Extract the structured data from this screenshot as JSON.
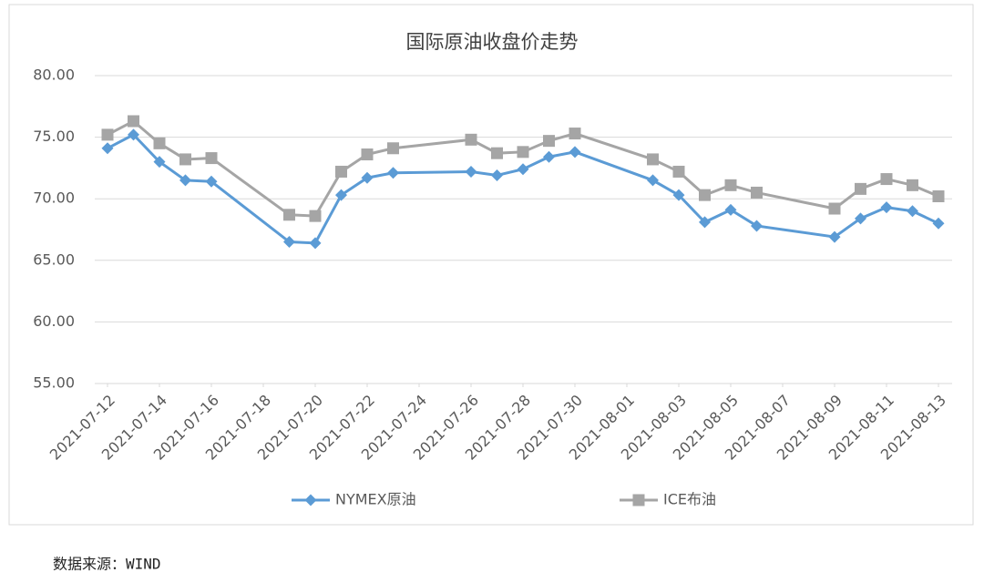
{
  "chart_data": {
    "type": "line",
    "title": "国际原油收盘价走势",
    "x": [
      "2021-07-12",
      "2021-07-13",
      "2021-07-14",
      "2021-07-15",
      "2021-07-16",
      "2021-07-19",
      "2021-07-20",
      "2021-07-21",
      "2021-07-22",
      "2021-07-23",
      "2021-07-26",
      "2021-07-27",
      "2021-07-28",
      "2021-07-29",
      "2021-07-30",
      "2021-08-02",
      "2021-08-03",
      "2021-08-04",
      "2021-08-05",
      "2021-08-06",
      "2021-08-09",
      "2021-08-10",
      "2021-08-11",
      "2021-08-12",
      "2021-08-13"
    ],
    "series": [
      {
        "name": "NYMEX原油",
        "color": "#5b9bd5",
        "marker": "diamond",
        "values": [
          74.1,
          75.2,
          73.0,
          71.5,
          71.4,
          66.5,
          66.4,
          70.3,
          71.7,
          72.1,
          72.2,
          71.9,
          72.4,
          73.4,
          73.8,
          71.5,
          70.3,
          68.1,
          69.1,
          67.8,
          66.9,
          68.4,
          69.3,
          69.0,
          68.0
        ]
      },
      {
        "name": "ICE布油",
        "color": "#a5a5a5",
        "marker": "square",
        "values": [
          75.2,
          76.3,
          74.5,
          73.2,
          73.3,
          68.7,
          68.6,
          72.2,
          73.6,
          74.1,
          74.8,
          73.7,
          73.8,
          74.7,
          75.3,
          73.2,
          72.2,
          70.3,
          71.1,
          70.5,
          69.2,
          70.8,
          71.6,
          71.1,
          70.2
        ]
      }
    ],
    "xlim": [
      "2021-07-12",
      "2021-08-13"
    ],
    "xticks": [
      "2021-07-12",
      "2021-07-14",
      "2021-07-16",
      "2021-07-18",
      "2021-07-20",
      "2021-07-22",
      "2021-07-24",
      "2021-07-26",
      "2021-07-28",
      "2021-07-30",
      "2021-08-01",
      "2021-08-03",
      "2021-08-05",
      "2021-08-07",
      "2021-08-09",
      "2021-08-11",
      "2021-08-13"
    ],
    "ylim": [
      55,
      80
    ],
    "yticks": [
      {
        "value": 55,
        "label": "55.00"
      },
      {
        "value": 60,
        "label": "60.00"
      },
      {
        "value": 65,
        "label": "65.00"
      },
      {
        "value": 70,
        "label": "70.00"
      },
      {
        "value": 75,
        "label": "75.00"
      },
      {
        "value": 80,
        "label": "80.00"
      }
    ],
    "grid": true,
    "legend": "bottom"
  },
  "source": "数据来源：WIND"
}
